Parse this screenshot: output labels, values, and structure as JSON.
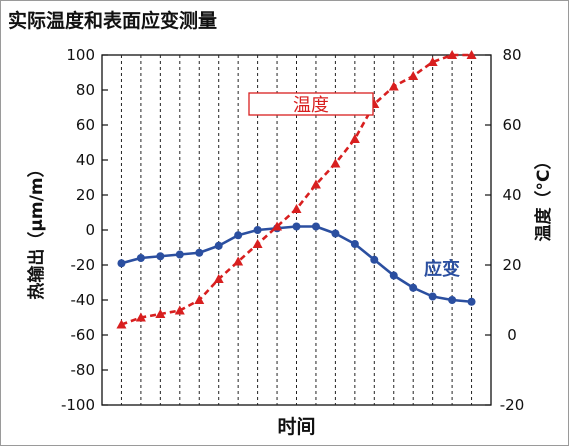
{
  "title": "实际温度和表面应变测量",
  "chart_data": {
    "type": "line",
    "xlabel": "时间",
    "ylabel_left": "热输出（μm/m）",
    "ylabel_right": "温度（°C）",
    "ylim_left": [
      -100,
      100
    ],
    "ylim_right": [
      -20,
      80
    ],
    "yticks_left": [
      100,
      80,
      60,
      40,
      20,
      0,
      -20,
      -40,
      -60,
      -80,
      -100
    ],
    "yticks_right": [
      80,
      60,
      40,
      20,
      0,
      -20
    ],
    "x": [
      1,
      2,
      3,
      4,
      5,
      6,
      7,
      8,
      9,
      10,
      11,
      12,
      13,
      14,
      15,
      16,
      17,
      18,
      19
    ],
    "grid": "vertical dashed",
    "series": [
      {
        "name": "应变",
        "axis": "left",
        "color": "#2b4fa0",
        "style": "solid",
        "marker": "circle",
        "values": [
          -19,
          -16,
          -15,
          -14,
          -13,
          -9,
          -3,
          0,
          1,
          2,
          2,
          -2,
          -8,
          -17,
          -26,
          -33,
          -38,
          -40,
          -41
        ]
      },
      {
        "name": "温度",
        "axis": "right",
        "color": "#d81f1f",
        "style": "dashed",
        "marker": "triangle",
        "values": [
          3,
          5,
          6,
          7,
          10,
          16,
          21,
          26,
          31,
          36,
          43,
          49,
          56,
          66,
          71,
          74,
          78,
          80,
          80
        ]
      }
    ]
  }
}
